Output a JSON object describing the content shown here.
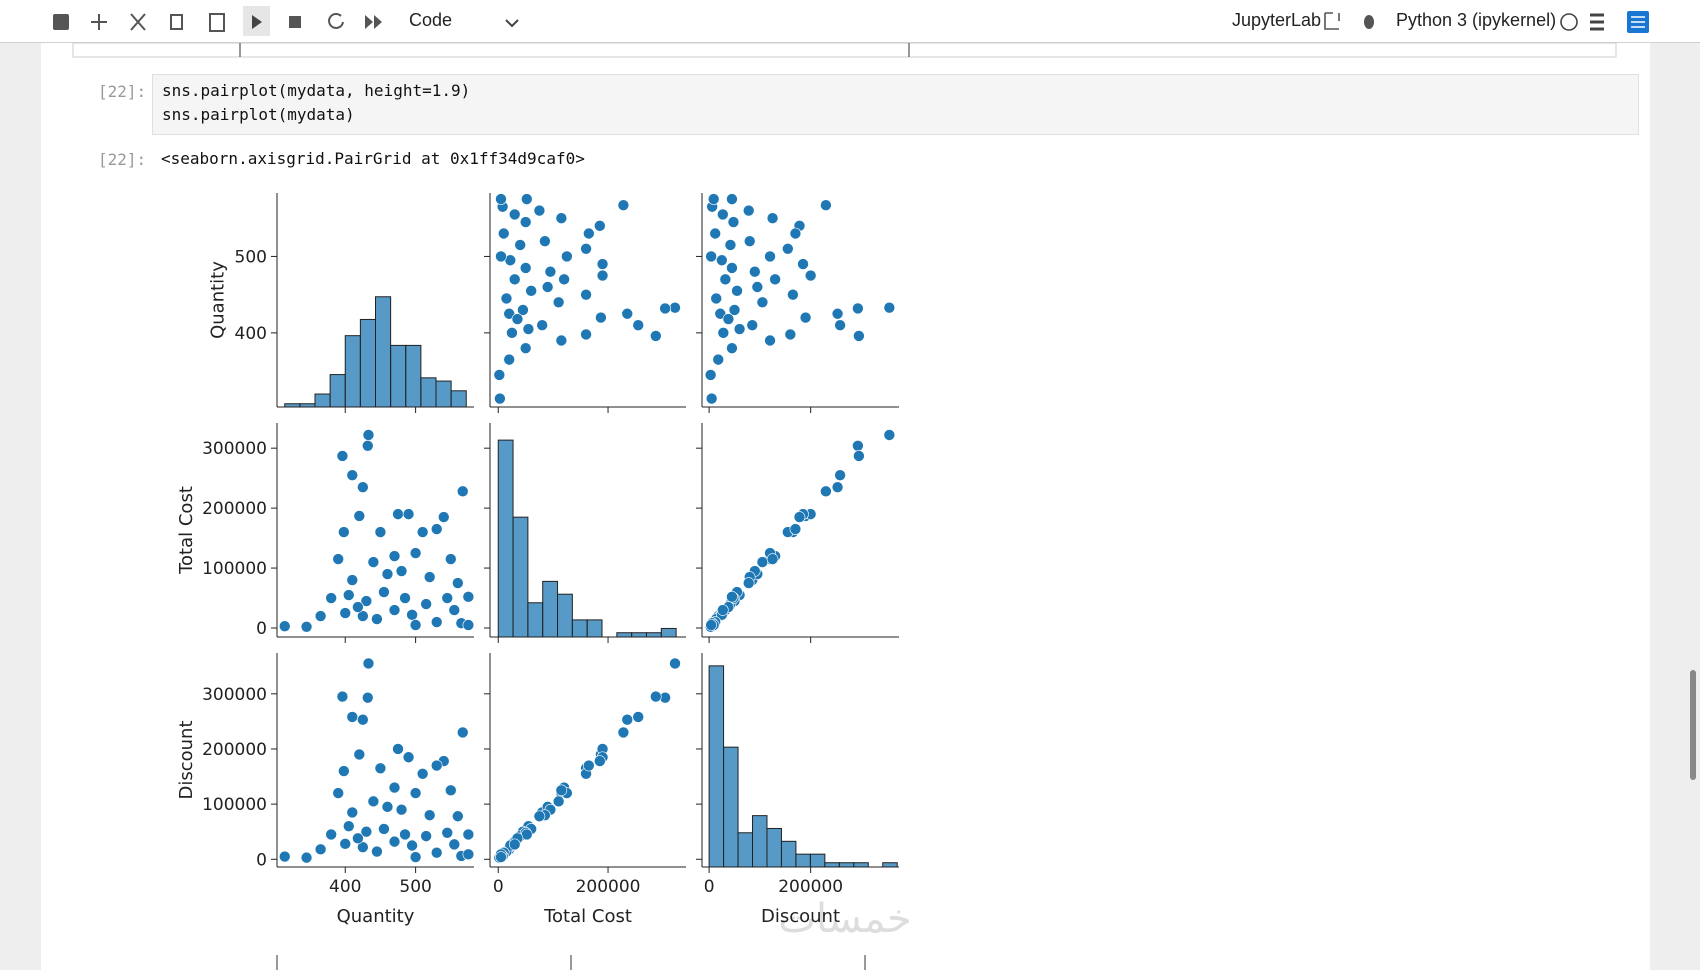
{
  "toolbar": {
    "cell_type": "Code",
    "app": "JupyterLab",
    "kernel": "Python 3 (ipykernel)"
  },
  "cell": {
    "prompt": "[22]:",
    "code": [
      "sns.pairplot(mydata, height=1.9)",
      "sns.pairplot(mydata)"
    ],
    "output_prompt": "[22]:",
    "output_text": "<seaborn.axisgrid.PairGrid at 0x1ff34d9caf0>"
  },
  "chart_data": {
    "type": "pairplot",
    "color": "#1f77b4",
    "variables": [
      {
        "name": "Quantity",
        "lim": [
          303,
          583
        ],
        "xticks": [
          400,
          500
        ],
        "yticks": [
          400,
          500
        ],
        "values": [
          314,
          345,
          433,
          432,
          396,
          410,
          425,
          567,
          420,
          475,
          490,
          540,
          398,
          450,
          510,
          530,
          390,
          440,
          470,
          500,
          550,
          410,
          460,
          480,
          520,
          560,
          380,
          405,
          430,
          455,
          485,
          515,
          545,
          575,
          365,
          400,
          425,
          445,
          470,
          495,
          530,
          565,
          575,
          418,
          500,
          555
        ],
        "hist": {
          "bins": [
            314,
            335.5,
            357,
            378.5,
            400,
            421.5,
            443,
            464.5,
            486,
            507.5,
            529,
            550.5,
            572
          ],
          "counts": [
            1,
            1,
            4,
            10,
            22,
            27,
            34,
            19,
            19,
            9,
            8,
            5
          ]
        },
        "hist_ylim": [
          0,
          66
        ]
      },
      {
        "name": "Total Cost",
        "lim": [
          -15000,
          342000
        ],
        "xticks": [
          0,
          200000
        ],
        "yticks": [
          0,
          100000,
          200000,
          300000
        ],
        "values": [
          3000,
          2000,
          322000,
          304000,
          287000,
          255000,
          235000,
          228000,
          187000,
          190000,
          190000,
          185000,
          160000,
          160000,
          160000,
          165000,
          115000,
          110000,
          120000,
          125000,
          115000,
          80000,
          90000,
          95000,
          85000,
          75000,
          50000,
          55000,
          45000,
          60000,
          50000,
          40000,
          50000,
          52000,
          20000,
          25000,
          20000,
          15000,
          30000,
          22000,
          10000,
          8000,
          5000,
          35000,
          5000,
          30000
        ],
        "hist": {
          "bins": [
            0,
            27000,
            54000,
            81000,
            108000,
            135000,
            162000,
            189000,
            216000,
            243000,
            270000,
            297000,
            324000
          ],
          "counts": [
            46,
            28,
            8,
            13,
            10,
            4,
            4,
            0,
            1,
            1,
            1,
            2
          ]
        },
        "hist_ylim": [
          0,
          50
        ]
      },
      {
        "name": "Discount",
        "lim": [
          -14000,
          374000
        ],
        "xticks": [
          0,
          200000
        ],
        "yticks": [
          0,
          100000,
          200000,
          300000
        ],
        "values": [
          5000,
          3000,
          355000,
          293000,
          295000,
          258000,
          253000,
          230000,
          190000,
          200000,
          185000,
          178000,
          160000,
          165000,
          155000,
          170000,
          120000,
          105000,
          130000,
          120000,
          125000,
          85000,
          95000,
          90000,
          80000,
          78000,
          45000,
          60000,
          50000,
          55000,
          45000,
          42000,
          48000,
          45000,
          18000,
          28000,
          22000,
          14000,
          32000,
          25000,
          12000,
          6000,
          9000,
          38000,
          4000,
          27000
        ],
        "hist": {
          "bins": [
            0,
            28500,
            57000,
            85500,
            114000,
            142500,
            171000,
            199500,
            228000,
            256500,
            285000,
            313500,
            342000,
            370500
          ],
          "counts": [
            47,
            28,
            8,
            12,
            9,
            6,
            3,
            3,
            1,
            1,
            1,
            0,
            1
          ]
        },
        "hist_ylim": [
          0,
          50
        ]
      }
    ]
  },
  "watermark": "خمسات"
}
